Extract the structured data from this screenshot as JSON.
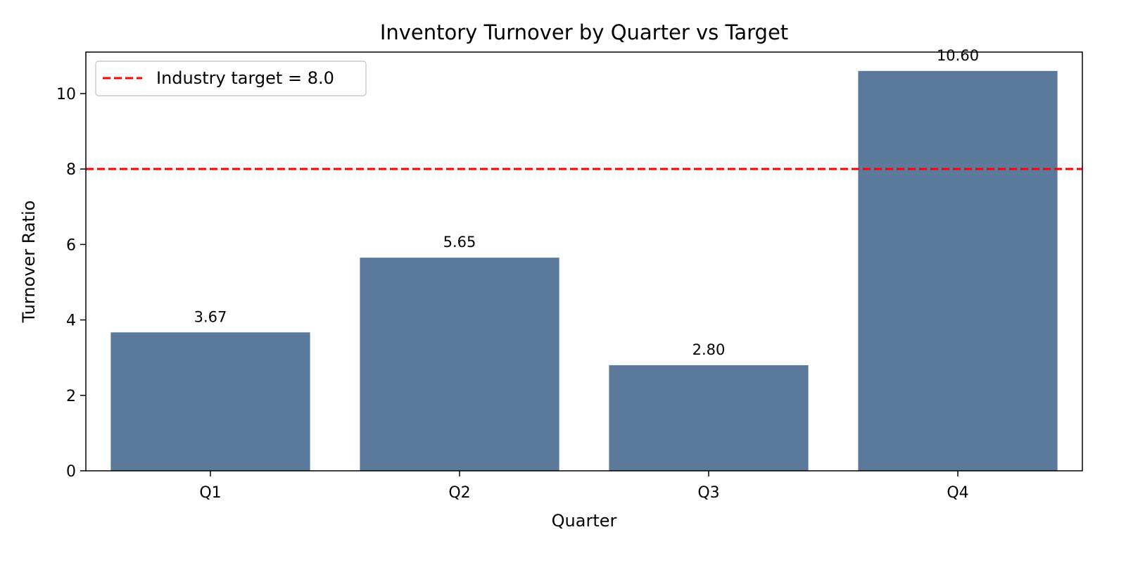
{
  "chart_data": {
    "type": "bar",
    "title": "Inventory Turnover by Quarter vs Target",
    "xlabel": "Quarter",
    "ylabel": "Turnover Ratio",
    "categories": [
      "Q1",
      "Q2",
      "Q3",
      "Q4"
    ],
    "values": [
      3.67,
      5.65,
      2.8,
      10.6
    ],
    "value_labels": [
      "3.67",
      "5.65",
      "2.80",
      "10.60"
    ],
    "ylim": [
      0,
      11.1
    ],
    "yticks": [
      0,
      2,
      4,
      6,
      8,
      10
    ],
    "reference_line": {
      "value": 8.0,
      "label": "Industry target = 8.0",
      "color": "#ff0000",
      "style": "dashed"
    },
    "bar_color": "#5a799b",
    "legend_position": "top-left",
    "grid": false
  }
}
